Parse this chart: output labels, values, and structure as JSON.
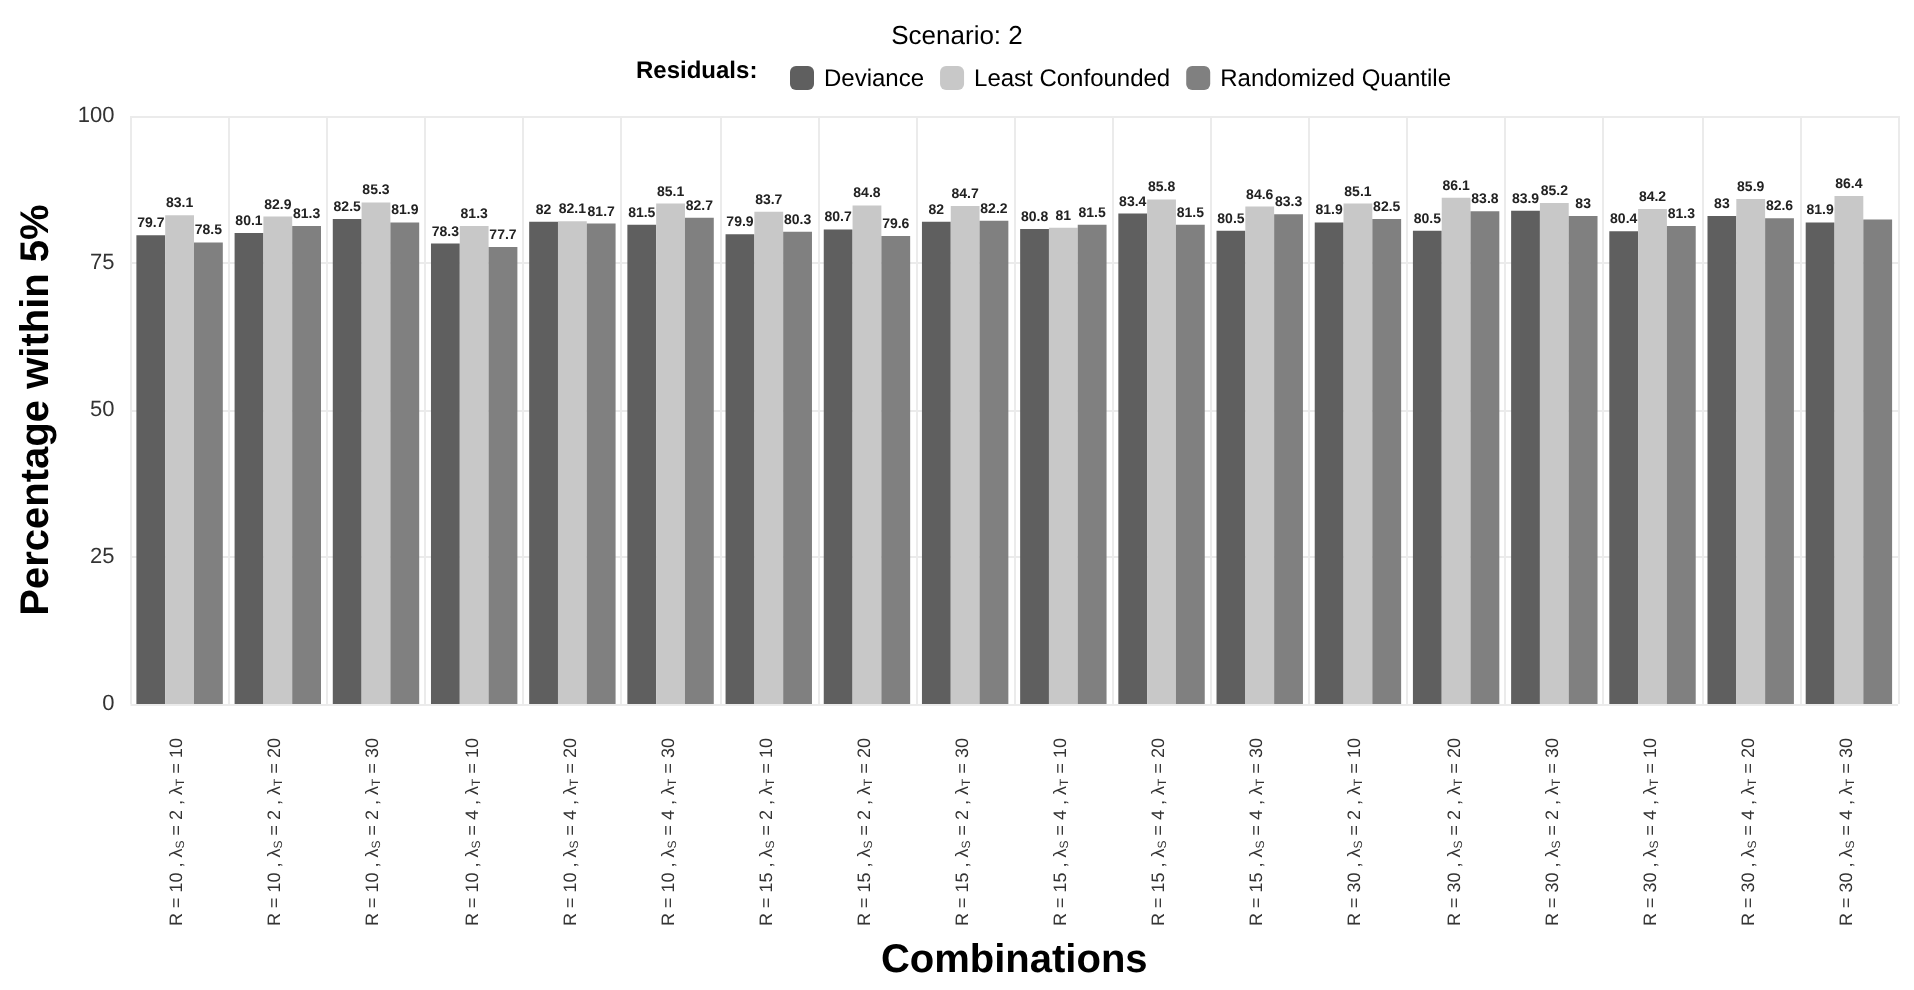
{
  "chart_data": {
    "type": "bar",
    "title": "Scenario: 2",
    "xlabel": "Combinations",
    "ylabel": "Percentage within 5%",
    "legend_title": "Residuals:",
    "legend": "top",
    "grid": true,
    "categories": [
      "R = 10 , λ$_{S}$ = 2 , λ$_{T}$ = 10",
      "R = 10 , λ$_{S}$ = 2 , λ$_{T}$ = 20",
      "R = 10 , λ$_{S}$ = 2 , λ$_{T}$ = 30",
      "R = 10 , λ$_{S}$ = 4 , λ$_{T}$ = 10",
      "R = 10 , λ$_{S}$ = 4 , λ$_{T}$ = 20",
      "R = 10 , λ$_{S}$ = 4 , λ$_{T}$ = 30",
      "R = 15 , λ$_{S}$ = 2 , λ$_{T}$ = 10",
      "R = 15 , λ$_{S}$ = 2 , λ$_{T}$ = 20",
      "R = 15 , λ$_{S}$ = 2 , λ$_{T}$ = 30",
      "R = 15 , λ$_{S}$ = 4 , λ$_{T}$ = 10",
      "R = 15 , λ$_{S}$ = 4 , λ$_{T}$ = 20",
      "R = 15 , λ$_{S}$ = 4 , λ$_{T}$ = 30",
      "R = 30 , λ$_{S}$ = 2 , λ$_{T}$ = 10",
      "R = 30 , λ$_{S}$ = 2 , λ$_{T}$ = 20",
      "R = 30 , λ$_{S}$ = 2 , λ$_{T}$ = 30",
      "R = 30 , λ$_{S}$ = 4 , λ$_{T}$ = 10",
      "R = 30 , λ$_{S}$ = 4 , λ$_{T}$ = 20",
      "R = 30 , λ$_{S}$ = 4 , λ$_{T}$ = 30"
    ],
    "ylim": [
      0,
      100
    ],
    "yticks": [
      0,
      25,
      50,
      75,
      100
    ],
    "series": [
      {
        "name": "Deviance",
        "color": "#5f5f5f",
        "values": [
          79.7,
          80.1,
          82.5,
          78.3,
          82,
          81.5,
          79.9,
          80.7,
          82,
          80.8,
          83.4,
          80.5,
          81.9,
          80.5,
          83.9,
          80.4,
          83,
          81.9
        ],
        "value_labels": [
          "79.7",
          "80.1",
          "82.5",
          "78.3",
          "82",
          "81.5",
          "79.9",
          "80.7",
          "82",
          "80.8",
          "83.4",
          "80.5",
          "81.9",
          "80.5",
          "83.9",
          "80.4",
          "83",
          "81.9"
        ]
      },
      {
        "name": "Least Confounded",
        "color": "#c8c8c8",
        "values": [
          83.1,
          82.9,
          85.3,
          81.3,
          82.1,
          85.1,
          83.7,
          84.8,
          84.7,
          81,
          85.8,
          84.6,
          85.1,
          86.1,
          85.2,
          84.2,
          85.9,
          86.4
        ],
        "value_labels": [
          "83.1",
          "82.9",
          "85.3",
          "81.3",
          "82.1",
          "85.1",
          "83.7",
          "84.8",
          "84.7",
          "81",
          "85.8",
          "84.6",
          "85.1",
          "86.1",
          "85.2",
          "84.2",
          "85.9",
          "86.4"
        ]
      },
      {
        "name": "Randomized Quantile",
        "color": "#808080",
        "values": [
          78.5,
          81.3,
          81.9,
          77.7,
          81.7,
          82.7,
          80.3,
          79.6,
          82.2,
          81.5,
          81.5,
          83.3,
          82.5,
          83.8,
          83,
          81.3,
          82.6,
          82.4
        ],
        "value_labels": [
          "78.5",
          "81.3",
          "81.9",
          "77.7",
          "81.7",
          "82.7",
          "80.3",
          "79.6",
          "82.2",
          "81.5",
          "81.5",
          "83.3",
          "82.5",
          "83.8",
          "83",
          "81.3",
          "82.6",
          null
        ]
      }
    ]
  }
}
